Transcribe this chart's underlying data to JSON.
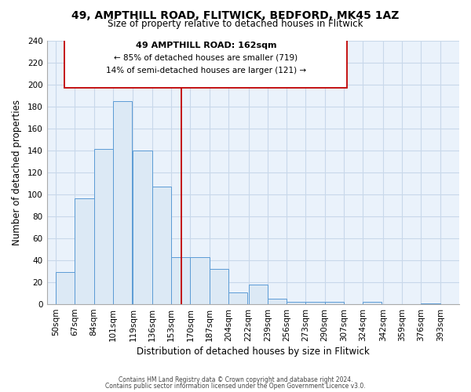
{
  "title": "49, AMPTHILL ROAD, FLITWICK, BEDFORD, MK45 1AZ",
  "subtitle": "Size of property relative to detached houses in Flitwick",
  "xlabel": "Distribution of detached houses by size in Flitwick",
  "ylabel": "Number of detached properties",
  "bar_left_edges": [
    50,
    67,
    84,
    101,
    119,
    136,
    153,
    170,
    187,
    204,
    222,
    239,
    256,
    273,
    290,
    307,
    324,
    342,
    359,
    376
  ],
  "bar_heights": [
    29,
    96,
    141,
    185,
    140,
    107,
    43,
    43,
    32,
    11,
    18,
    5,
    2,
    2,
    2,
    0,
    2,
    0,
    0,
    1
  ],
  "bar_widths": [
    17,
    17,
    17,
    17,
    17,
    17,
    17,
    17,
    17,
    17,
    17,
    17,
    17,
    17,
    17,
    17,
    17,
    17,
    17,
    17
  ],
  "tick_labels": [
    "50sqm",
    "67sqm",
    "84sqm",
    "101sqm",
    "119sqm",
    "136sqm",
    "153sqm",
    "170sqm",
    "187sqm",
    "204sqm",
    "222sqm",
    "239sqm",
    "256sqm",
    "273sqm",
    "290sqm",
    "307sqm",
    "324sqm",
    "342sqm",
    "359sqm",
    "376sqm",
    "393sqm"
  ],
  "bar_fill_color": "#dce9f5",
  "bar_edge_color": "#5b9bd5",
  "plot_bg_color": "#eaf2fb",
  "vline_x": 162,
  "vline_color": "#c00000",
  "ylim": [
    0,
    240
  ],
  "xlim": [
    42,
    410
  ],
  "annotation_title": "49 AMPTHILL ROAD: 162sqm",
  "annotation_line1": "← 85% of detached houses are smaller (719)",
  "annotation_line2": "14% of semi-detached houses are larger (121) →",
  "footer1": "Contains HM Land Registry data © Crown copyright and database right 2024.",
  "footer2": "Contains public sector information licensed under the Open Government Licence v3.0.",
  "background_color": "#ffffff",
  "grid_color": "#c8d8ea"
}
